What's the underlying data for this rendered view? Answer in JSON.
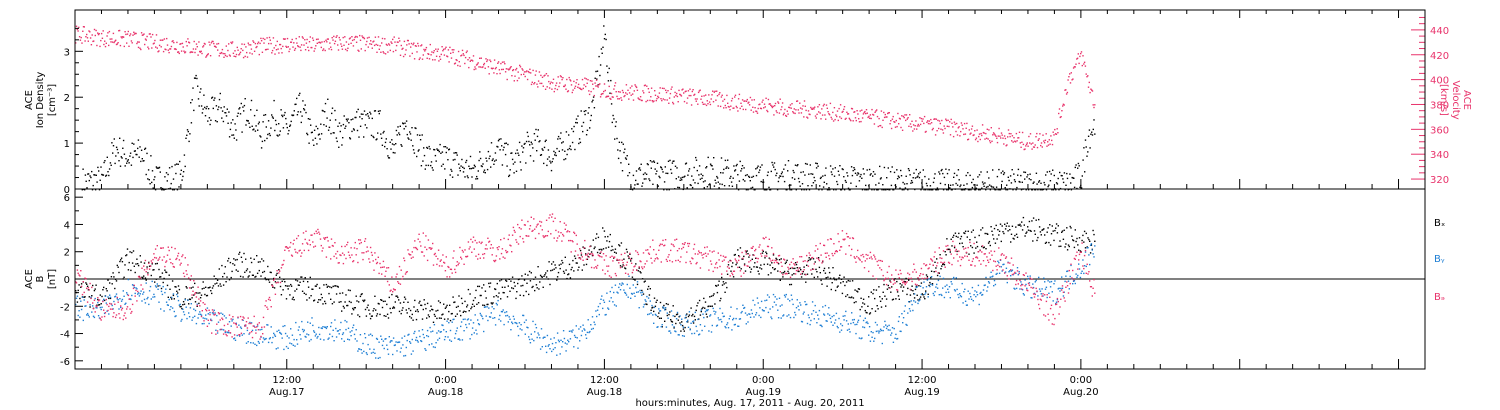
{
  "colors": {
    "black": "#000000",
    "pink": "#e8336b",
    "blue": "#1f7fd4",
    "frame": "#000000"
  },
  "time_axis": {
    "range_hours": [
      -4,
      98
    ],
    "ticks": [
      {
        "h": 12,
        "label": "12:00",
        "date": "Aug.17"
      },
      {
        "h": 24,
        "label": "0:00",
        "date": "Aug.18"
      },
      {
        "h": 36,
        "label": "12:00",
        "date": "Aug.18"
      },
      {
        "h": 48,
        "label": "0:00",
        "date": "Aug.19"
      },
      {
        "h": 60,
        "label": "12:00",
        "date": "Aug.19"
      },
      {
        "h": 72,
        "label": "0:00",
        "date": "Aug.20"
      }
    ],
    "title": "hours:minutes, Aug. 17, 2011 - Aug. 20, 2011"
  },
  "chart_data": [
    {
      "type": "scatter",
      "panel": "top",
      "left_label": [
        "ACE",
        "Ion Density",
        "[cm⁻³]"
      ],
      "right_label": [
        "ACE",
        "Velocity",
        "[km/s]"
      ],
      "ylim": [
        0,
        3.9
      ],
      "yticks": [
        0,
        1,
        2,
        3
      ],
      "y2lim": [
        312,
        456
      ],
      "y2ticks": [
        320,
        340,
        360,
        380,
        400,
        420,
        440
      ],
      "series": [
        {
          "axis": "left",
          "color": "#000000",
          "x": [
            -3.5,
            -2.0,
            -1.0,
            0.0,
            1.0,
            2.0,
            3.0,
            4.0,
            5.0,
            6.0,
            7.0,
            8.0,
            9.0,
            10.0,
            11.0,
            12.0,
            13.0,
            14.0,
            15.0,
            16.0,
            17.0,
            18.0,
            19.0,
            20.0,
            21.0,
            22.0,
            23.0,
            24.0,
            25.0,
            26.0,
            27.0,
            28.0,
            29.0,
            30.0,
            31.0,
            32.0,
            33.0,
            34.0,
            35.0,
            36.0,
            36.5,
            37.0,
            37.5,
            38.0,
            39.0,
            40.0,
            42.0,
            44.0,
            46.0,
            48.0,
            50.0,
            52.0,
            54.0,
            56.0,
            58.0,
            60.0,
            62.0,
            64.0,
            66.0,
            68.0,
            70.0,
            71.0,
            72.0,
            72.5,
            73.0
          ],
          "y": [
            0.15,
            0.2,
            0.9,
            0.7,
            0.8,
            0.2,
            0.2,
            0.3,
            2.2,
            1.6,
            1.8,
            1.3,
            1.8,
            1.2,
            1.6,
            1.3,
            1.8,
            1.0,
            1.7,
            1.2,
            1.5,
            1.4,
            1.4,
            0.8,
            1.5,
            0.9,
            0.6,
            0.7,
            0.5,
            0.4,
            0.7,
            0.9,
            0.5,
            0.9,
            1.0,
            0.7,
            1.0,
            1.3,
            1.7,
            3.4,
            1.8,
            1.0,
            0.6,
            0.3,
            0.3,
            0.3,
            0.35,
            0.4,
            0.3,
            0.25,
            0.3,
            0.25,
            0.2,
            0.18,
            0.15,
            0.12,
            0.1,
            0.1,
            0.1,
            0.1,
            0.1,
            0.1,
            0.3,
            1.2,
            1.4
          ]
        },
        {
          "axis": "right",
          "color": "#e8336b",
          "x": [
            -4.0,
            -2.0,
            0.0,
            2.0,
            4.0,
            6.0,
            8.0,
            10.0,
            12.0,
            14.0,
            16.0,
            18.0,
            20.0,
            22.0,
            24.0,
            26.0,
            28.0,
            30.0,
            32.0,
            34.0,
            36.0,
            38.0,
            40.0,
            42.0,
            44.0,
            46.0,
            48.0,
            50.0,
            52.0,
            54.0,
            56.0,
            58.0,
            60.0,
            62.0,
            64.0,
            66.0,
            68.0,
            70.0,
            71.0,
            72.0,
            73.0
          ],
          "y": [
            437,
            434,
            433,
            430,
            428,
            425,
            424,
            427,
            429,
            428,
            430,
            429,
            428,
            423,
            421,
            416,
            409,
            404,
            398,
            396,
            392,
            390,
            389,
            387,
            385,
            382,
            380,
            377,
            376,
            373,
            370,
            367,
            364,
            362,
            358,
            355,
            350,
            355,
            400,
            420,
            380
          ]
        }
      ]
    },
    {
      "type": "scatter",
      "panel": "bottom",
      "left_label": [
        "ACE",
        "B",
        "[nT]"
      ],
      "ylim": [
        -6.6,
        6.6
      ],
      "yticks": [
        -6,
        -4,
        -2,
        0,
        2,
        4,
        6
      ],
      "legend": [
        "Bₓ",
        "Bᵧ",
        "Bₔ"
      ],
      "series": [
        {
          "name": "Bx",
          "color": "#000000",
          "x": [
            -4,
            -2,
            0,
            2,
            4,
            6,
            8,
            10,
            12,
            14,
            16,
            18,
            20,
            22,
            24,
            26,
            28,
            30,
            32,
            34,
            36,
            38,
            40,
            42,
            44,
            46,
            48,
            50,
            52,
            54,
            56,
            58,
            60,
            62,
            64,
            66,
            68,
            70,
            72,
            73
          ],
          "y": [
            -0.8,
            -1.4,
            1.5,
            0.5,
            -1.3,
            -0.9,
            1.2,
            0.8,
            -0.6,
            -0.7,
            -1.4,
            -2.0,
            -1.9,
            -2.2,
            -2.5,
            -1.2,
            -0.9,
            -0.3,
            0.6,
            1.2,
            3.2,
            1.0,
            -2.5,
            -3.0,
            -1.8,
            1.5,
            1.2,
            0.5,
            0.8,
            -0.5,
            -1.8,
            -0.6,
            -1.0,
            2.5,
            2.8,
            3.6,
            3.8,
            3.2,
            2.9,
            2.8
          ]
        },
        {
          "name": "By",
          "color": "#1f7fd4",
          "x": [
            -4,
            -2,
            0,
            2,
            4,
            6,
            8,
            10,
            12,
            14,
            16,
            18,
            20,
            22,
            24,
            26,
            28,
            30,
            32,
            34,
            36,
            38,
            40,
            42,
            44,
            46,
            48,
            50,
            52,
            54,
            56,
            58,
            60,
            62,
            64,
            66,
            68,
            70,
            72,
            73
          ],
          "y": [
            -2.0,
            -2.3,
            -0.7,
            -1.0,
            -2.2,
            -3.0,
            -3.6,
            -4.0,
            -4.3,
            -3.5,
            -3.6,
            -4.8,
            -5.0,
            -4.5,
            -3.9,
            -3.4,
            -2.3,
            -3.6,
            -4.8,
            -4.2,
            -1.8,
            -0.5,
            -2.8,
            -3.3,
            -3.0,
            -2.8,
            -2.0,
            -1.9,
            -2.6,
            -3.0,
            -3.8,
            -3.9,
            -0.3,
            -0.6,
            -1.2,
            0.8,
            -0.6,
            -0.9,
            1.0,
            2.5
          ]
        },
        {
          "name": "Bz",
          "color": "#e8336b",
          "x": [
            -4,
            -2,
            0,
            2,
            4,
            6,
            8,
            10,
            12,
            14,
            16,
            18,
            20,
            22,
            24,
            26,
            28,
            30,
            32,
            34,
            36,
            38,
            40,
            42,
            44,
            46,
            48,
            50,
            52,
            54,
            56,
            58,
            60,
            62,
            64,
            66,
            68,
            70,
            72,
            73
          ],
          "y": [
            0.5,
            -2.4,
            -2.0,
            2.0,
            1.4,
            -3.0,
            -3.5,
            -3.5,
            2.0,
            3.0,
            1.8,
            2.2,
            -0.5,
            2.8,
            0.8,
            2.5,
            2.0,
            3.8,
            4.0,
            2.5,
            1.0,
            1.2,
            2.2,
            2.0,
            1.5,
            0.8,
            2.6,
            0.5,
            1.8,
            2.8,
            1.2,
            -0.2,
            0.5,
            2.0,
            1.8,
            1.4,
            -0.5,
            -2.6,
            2.2,
            -1.0
          ]
        }
      ]
    }
  ]
}
